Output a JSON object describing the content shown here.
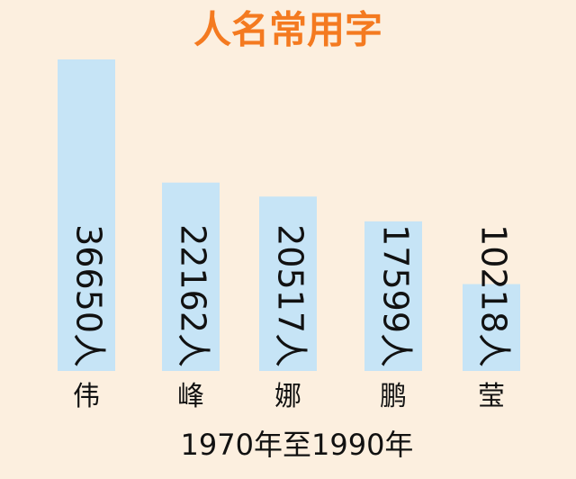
{
  "chart_data": {
    "type": "bar",
    "title": "人名常用字",
    "categories": [
      "伟",
      "峰",
      "娜",
      "鹏",
      "莹"
    ],
    "values": [
      36650,
      22162,
      20517,
      17599,
      10218
    ],
    "value_labels": [
      "36650人",
      "22162人",
      "20517人",
      "17599人",
      "10218人"
    ],
    "x_label": "1970年至1990年",
    "color": "#c6e4f6",
    "title_color": "#f47a20"
  }
}
